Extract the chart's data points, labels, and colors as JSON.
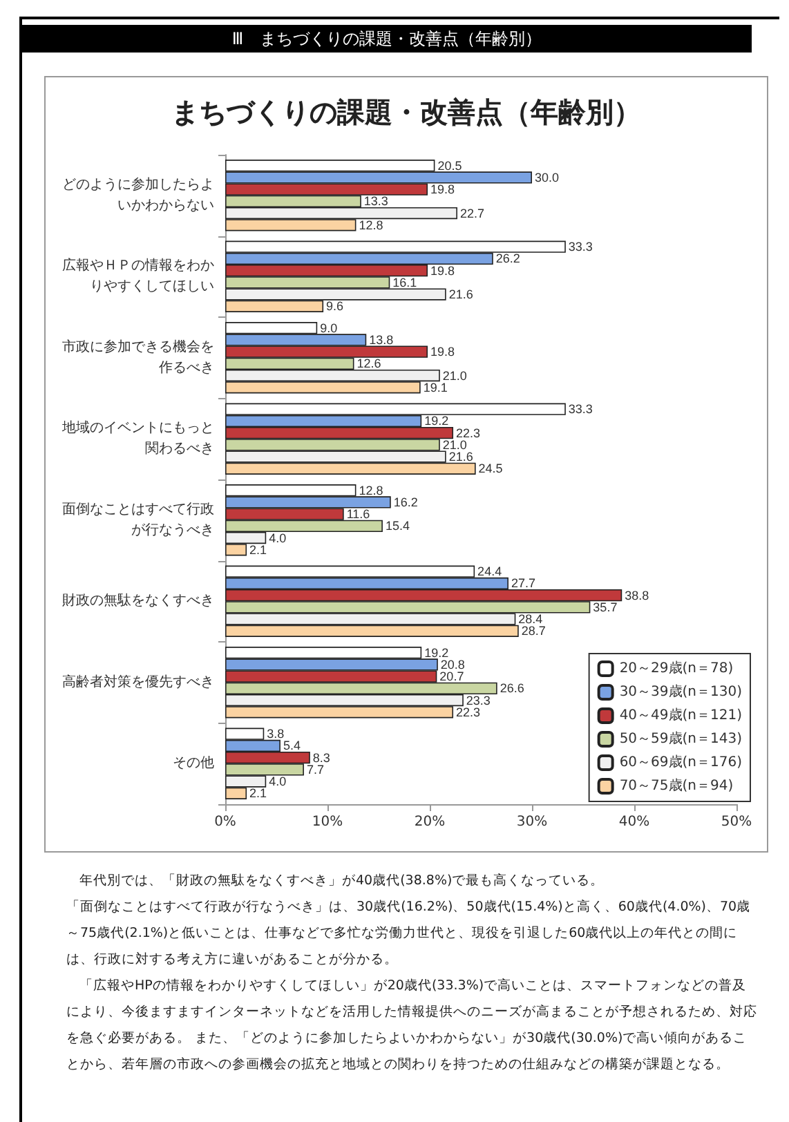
{
  "chart_data": {
    "type": "bar",
    "orientation": "horizontal",
    "subtitle": "Ⅲ　まちづくりの課題・改善点（年齢別）",
    "title": "まちづくりの課題・改善点（年齢別）",
    "categories": [
      "どのように参加したらよいかわからない",
      "広報やＨＰの情報をわかりやすくしてほしい",
      "市政に参加できる機会を作るべき",
      "地域のイベントにもっと関わるべき",
      "面倒なことはすべて行政が行なうべき",
      "財政の無駄をなくすべき",
      "高齢者対策を優先すべき",
      "その他"
    ],
    "series": [
      {
        "name": "20～29歳(n＝78)",
        "color": "#ffffff",
        "values": [
          20.5,
          33.3,
          9.0,
          33.3,
          12.8,
          24.4,
          19.2,
          3.8
        ],
        "value_labels": [
          "20.5",
          "33.3",
          "9.0",
          "33.3",
          "12.8",
          "24.4",
          "19.2",
          "3.8"
        ]
      },
      {
        "name": "30～39歳(n＝130)",
        "color": "#7aa2e2",
        "values": [
          30.0,
          26.2,
          13.8,
          19.2,
          16.2,
          27.7,
          20.8,
          5.4
        ],
        "value_labels": [
          "30.0",
          "26.2",
          "13.8",
          "19.2",
          "16.2",
          "27.7",
          "20.8",
          "5.4"
        ]
      },
      {
        "name": "40～49歳(n＝121)",
        "color": "#c0393b",
        "values": [
          19.8,
          19.8,
          19.8,
          22.3,
          11.6,
          38.8,
          20.7,
          8.3
        ],
        "value_labels": [
          "19.8",
          "19.8",
          "19.8",
          "22.3",
          "11.6",
          "38.8",
          "20.7",
          "8.3"
        ]
      },
      {
        "name": "50～59歳(n＝143)",
        "color": "#c9d6a2",
        "values": [
          13.3,
          16.1,
          12.6,
          21.0,
          15.4,
          35.7,
          26.6,
          7.7
        ],
        "value_labels": [
          "13.3",
          "16.1",
          "12.6",
          "21.0",
          "15.4",
          "35.7",
          "26.6",
          "7.7"
        ]
      },
      {
        "name": "60～69歳(n＝176)",
        "color": "#f0f0f0",
        "values": [
          22.7,
          21.6,
          21.0,
          21.6,
          4.0,
          28.4,
          23.3,
          4.0
        ],
        "value_labels": [
          "22.7",
          "21.6",
          "21.0",
          "21.6",
          "4.0",
          "28.4",
          "23.3",
          "4.0"
        ]
      },
      {
        "name": "70～75歳(n＝94)",
        "color": "#fbd3a2",
        "values": [
          12.8,
          9.6,
          19.1,
          24.5,
          2.1,
          28.7,
          22.3,
          2.1
        ],
        "value_labels": [
          "12.8",
          "9.6",
          "19.1",
          "24.5",
          "2.1",
          "28.7",
          "22.3",
          "2.1"
        ]
      }
    ],
    "xlim": [
      0,
      50
    ],
    "xticks": [
      {
        "value": 0,
        "label": "0%"
      },
      {
        "value": 10,
        "label": "10%"
      },
      {
        "value": 20,
        "label": "20%"
      },
      {
        "value": 30,
        "label": "30%"
      },
      {
        "value": 40,
        "label": "40%"
      },
      {
        "value": 50,
        "label": "50%"
      }
    ],
    "grid": false,
    "legend": "bottom right",
    "annotations": [
      "年代別では、「財政の無駄をなくすべき」が40歳代(38.8%)で最も高くなっている。",
      "「面倒なことはすべて行政が行なうべき」は、30歳代(16.2%)、50歳代(15.4%)と高く、60歳代(4.0%)、70歳～75歳代(2.1%)と低いことは、仕事などで多忙な労働力世代と、現役を引退した60歳代以上の年代との間には、行政に対する考え方に違いがあることが分かる。",
      "「広報やHPの情報をわかりやすくしてほしい」が20歳代(33.3%)で高いことは、スマートフォンなどの普及により、今後ますますインターネットなどを活用した情報提供へのニーズが高まることが予想されるため、対応を急ぐ必要がある。 また、「どのように参加したらよいかわからない」が30歳代(30.0%)で高い傾向があることから、若年層の市政への参画機会の拡充と地域との関わりを持つための仕組みなどの構築が課題となる。"
    ]
  }
}
